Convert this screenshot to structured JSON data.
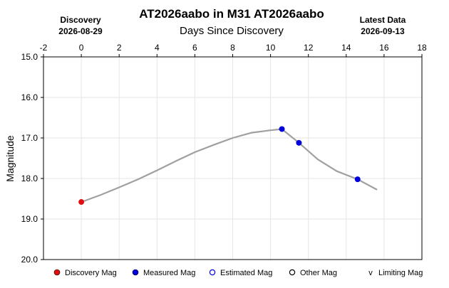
{
  "chart_data": {
    "type": "line",
    "title": "AT2026aabo in M31 AT2026aabo",
    "xlabel": "Days Since Discovery",
    "ylabel": "Magnitude",
    "discovery": {
      "label": "Discovery",
      "date": "2026-08-29"
    },
    "latest": {
      "label": "Latest Data",
      "date": "2026-09-13"
    },
    "xlim": [
      -2,
      18
    ],
    "ylim": [
      15.0,
      20.0
    ],
    "y_inverted": true,
    "x_ticks": [
      "-2",
      "0",
      "2",
      "4",
      "6",
      "8",
      "10",
      "12",
      "14",
      "16",
      "18"
    ],
    "y_ticks": [
      "15.0",
      "16.0",
      "17.0",
      "18.0",
      "19.0",
      "20.0"
    ],
    "grid": true,
    "fit_curve": {
      "color": "#a0a0a0",
      "x": [
        0.0,
        1.0,
        2.0,
        3.0,
        4.0,
        5.0,
        6.0,
        7.0,
        8.0,
        9.0,
        10.0,
        10.6,
        11.5,
        12.5,
        13.5,
        14.6,
        15.6
      ],
      "y": [
        18.58,
        18.41,
        18.22,
        18.02,
        17.8,
        17.57,
        17.35,
        17.17,
        17.0,
        16.87,
        16.81,
        16.78,
        17.12,
        17.53,
        17.82,
        18.02,
        18.27
      ]
    },
    "series": [
      {
        "name": "Discovery Mag",
        "color": "#e01010",
        "x": [
          0.0
        ],
        "y": [
          18.58
        ]
      },
      {
        "name": "Measured Mag",
        "color": "#0000dd",
        "x": [
          10.6,
          11.5,
          14.6
        ],
        "y": [
          16.78,
          17.12,
          18.02
        ]
      }
    ],
    "legend": {
      "placement": "bottom",
      "items": [
        {
          "label": "Discovery Mag",
          "marker": "filled-circle",
          "color": "#e01010"
        },
        {
          "label": "Measured Mag",
          "marker": "filled-circle",
          "color": "#0000dd"
        },
        {
          "label": "Estimated Mag",
          "marker": "open-circle",
          "color": "#0000dd"
        },
        {
          "label": "Other Mag",
          "marker": "open-circle",
          "color": "#000000"
        },
        {
          "label": "Limiting Mag",
          "marker": "v",
          "color": "#000000"
        }
      ]
    }
  }
}
